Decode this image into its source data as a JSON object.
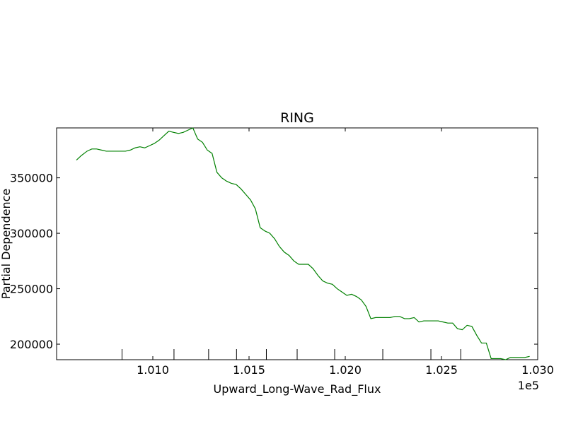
{
  "chart_data": {
    "type": "line",
    "title": "RING",
    "xlabel": "Upward_Long-Wave_Rad_Flux",
    "ylabel": "Partial Dependence",
    "x_offset_label": "1e5",
    "xlim": [
      100500,
      103000
    ],
    "ylim": [
      186000,
      395000
    ],
    "x_ticks": [
      101000,
      101500,
      102000,
      102500,
      103000
    ],
    "x_tick_labels": [
      "1.010",
      "1.015",
      "1.020",
      "1.025",
      "1.030"
    ],
    "y_ticks": [
      200000,
      250000,
      300000,
      350000
    ],
    "y_tick_labels": [
      "200000",
      "250000",
      "300000",
      "350000"
    ],
    "rug_ticks": [
      100840,
      101110,
      101290,
      101435,
      101590,
      101750,
      101945,
      102195,
      102445,
      102600
    ],
    "series": [
      {
        "color": "#008000",
        "x": [
          100603,
          100628,
          100658,
          100683,
          100708,
          100733,
          100758,
          100783,
          100808,
          100833,
          100858,
          100883,
          100908,
          100933,
          100958,
          100983,
          101008,
          101033,
          101058,
          101083,
          101108,
          101133,
          101158,
          101183,
          101208,
          101233,
          101258,
          101283,
          101308,
          101333,
          101358,
          101383,
          101408,
          101433,
          101458,
          101483,
          101508,
          101533,
          101558,
          101583,
          101608,
          101633,
          101658,
          101683,
          101708,
          101733,
          101758,
          101783,
          101808,
          101833,
          101858,
          101883,
          101908,
          101933,
          101958,
          101983,
          102008,
          102033,
          102058,
          102083,
          102108,
          102133,
          102158,
          102183,
          102208,
          102233,
          102258,
          102283,
          102308,
          102333,
          102358,
          102383,
          102408,
          102433,
          102458,
          102483,
          102508,
          102533,
          102558,
          102583,
          102608,
          102633,
          102658,
          102683,
          102708,
          102733,
          102758,
          102783,
          102808,
          102833,
          102858,
          102883,
          102908,
          102933,
          102958
        ],
        "y": [
          366000,
          370000,
          374000,
          376000,
          376000,
          375000,
          374000,
          374000,
          374000,
          374000,
          374000,
          375000,
          377000,
          378000,
          377000,
          379000,
          381000,
          384000,
          388000,
          392000,
          391000,
          390000,
          391000,
          393000,
          395000,
          385000,
          382000,
          375000,
          372000,
          355000,
          350000,
          347000,
          345000,
          344000,
          340000,
          335000,
          330000,
          322000,
          305000,
          302000,
          300000,
          295000,
          288000,
          283000,
          280000,
          275000,
          272000,
          272000,
          272000,
          268000,
          262000,
          257000,
          255000,
          254000,
          250000,
          247000,
          244000,
          245000,
          243000,
          240000,
          234000,
          223000,
          224000,
          224000,
          224000,
          224000,
          225000,
          225000,
          223000,
          223000,
          224000,
          220000,
          221000,
          221000,
          221000,
          221000,
          220000,
          219000,
          219000,
          214000,
          213000,
          217000,
          216000,
          208000,
          201000,
          201000,
          187000,
          187000,
          187000,
          186000,
          188000,
          188000,
          188000,
          188000,
          189000
        ]
      }
    ],
    "grid": false
  }
}
